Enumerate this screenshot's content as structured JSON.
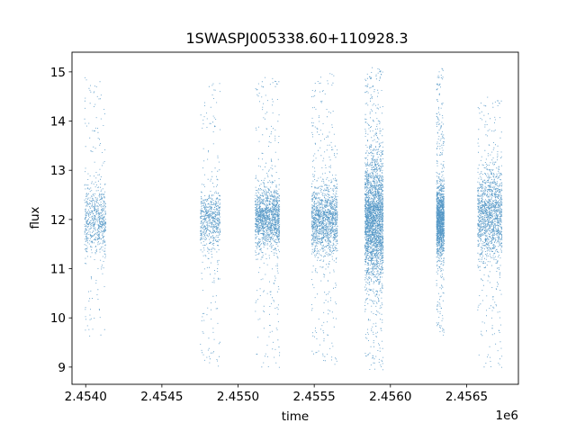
{
  "chart_data": {
    "type": "scatter",
    "title": "1SWASPJ005338.60+110928.3",
    "xlabel": "time",
    "ylabel": "flux",
    "x_offset_label": "1e6",
    "xlim": [
      2453860,
      2456790
    ],
    "ylim": [
      8.65,
      15.4
    ],
    "x_ticks": [
      2453950,
      2454450,
      2454950,
      2455450,
      2455950,
      2456450
    ],
    "x_tick_labels": [
      "2.4540",
      "2.4545",
      "2.4550",
      "2.4555",
      "2.4560",
      "2.4565"
    ],
    "y_ticks": [
      9,
      10,
      11,
      12,
      13,
      14,
      15
    ],
    "y_tick_labels": [
      "9",
      "10",
      "11",
      "12",
      "13",
      "14",
      "15"
    ],
    "grid": false,
    "legend": "none",
    "marker_color": "#1f77b4",
    "observing_seasons": [
      {
        "x_start": 2453940,
        "x_end": 2454080,
        "center_flux": 12.0,
        "spread": 0.35,
        "density": "medium",
        "flux_range": [
          9.6,
          14.9
        ]
      },
      {
        "x_start": 2454700,
        "x_end": 2454830,
        "center_flux": 12.0,
        "spread": 0.3,
        "density": "medium",
        "flux_range": [
          9.0,
          15.0
        ]
      },
      {
        "x_start": 2455060,
        "x_end": 2455220,
        "center_flux": 12.05,
        "spread": 0.3,
        "density": "high",
        "flux_range": [
          9.0,
          14.9
        ]
      },
      {
        "x_start": 2455430,
        "x_end": 2455600,
        "center_flux": 12.0,
        "spread": 0.35,
        "density": "high",
        "flux_range": [
          9.0,
          15.0
        ]
      },
      {
        "x_start": 2455780,
        "x_end": 2455900,
        "center_flux": 12.0,
        "spread": 0.6,
        "density": "very-high",
        "flux_range": [
          8.95,
          15.1
        ]
      },
      {
        "x_start": 2456250,
        "x_end": 2456300,
        "center_flux": 12.0,
        "spread": 0.35,
        "density": "high",
        "flux_range": [
          9.6,
          15.1
        ]
      },
      {
        "x_start": 2456520,
        "x_end": 2456680,
        "center_flux": 12.1,
        "spread": 0.45,
        "density": "high",
        "flux_range": [
          9.0,
          14.5
        ]
      }
    ]
  }
}
